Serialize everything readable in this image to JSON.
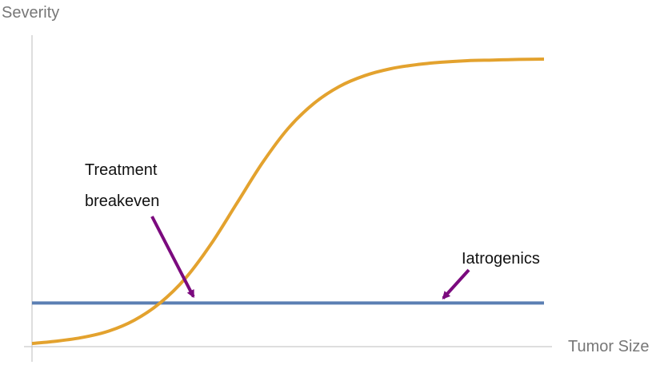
{
  "chart_data": {
    "type": "line",
    "title": "",
    "xlabel": "Tumor Size",
    "ylabel": "Severity",
    "xlim": [
      0,
      10
    ],
    "ylim": [
      0,
      10
    ],
    "grid": false,
    "legend": "none",
    "ticks": false,
    "series": [
      {
        "color": "#E3A22E",
        "x": [
          0,
          0.5,
          1,
          1.5,
          2,
          2.5,
          3,
          3.5,
          4,
          4.5,
          5,
          5.5,
          6,
          6.5,
          7,
          7.5,
          8,
          8.5,
          9,
          9.5,
          10
        ],
        "values": [
          0.1,
          0.18,
          0.3,
          0.5,
          0.85,
          1.4,
          2.2,
          3.3,
          4.6,
          5.9,
          7.0,
          7.8,
          8.35,
          8.7,
          8.92,
          9.05,
          9.13,
          9.18,
          9.2,
          9.22,
          9.23
        ]
      },
      {
        "color": "#5B7FB3",
        "x": [
          0,
          10
        ],
        "values": [
          1.4,
          1.4
        ]
      }
    ],
    "annotations": [
      {
        "lines": [
          "Treatment",
          "breakeven"
        ],
        "target": [
          3.2,
          1.4
        ],
        "arrow_color": "#7B0A7E"
      },
      {
        "lines": [
          "Iatrogenics"
        ],
        "target": [
          8.0,
          1.4
        ],
        "arrow_color": "#7B0A7E"
      }
    ]
  }
}
